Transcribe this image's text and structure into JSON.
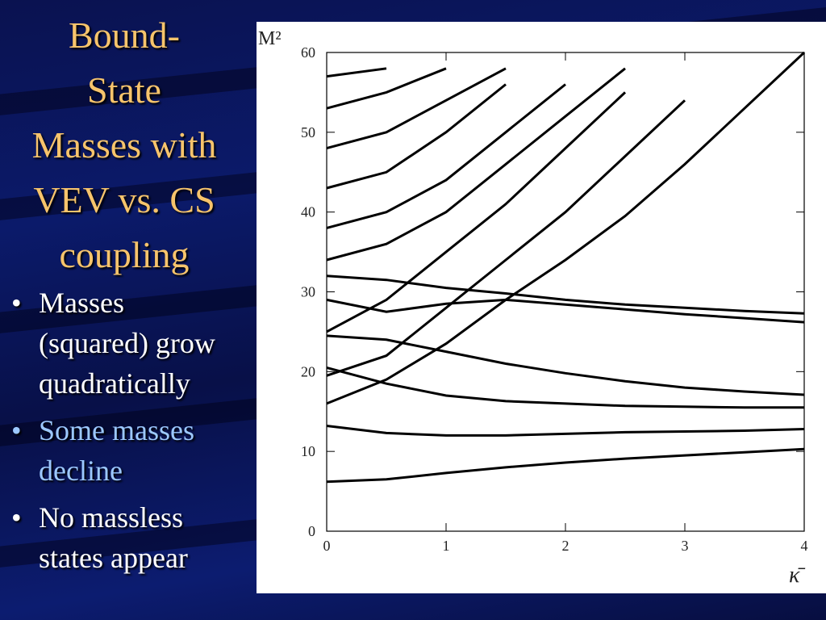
{
  "slide": {
    "title": [
      "Bound-",
      "State",
      "Masses with",
      "VEV vs. CS",
      "coupling"
    ],
    "bullets": [
      "Masses (squared) grow quadratically",
      "Some masses decline",
      "No massless states appear"
    ]
  },
  "chart_data": {
    "type": "line",
    "x_label": "κ̄",
    "y_label": "M²",
    "x": [
      0,
      0.5,
      1,
      1.5,
      2,
      2.5,
      3,
      3.5,
      4
    ],
    "xlim": [
      0,
      4
    ],
    "ylim": [
      0,
      60
    ],
    "xticks": [
      0,
      1,
      2,
      3,
      4
    ],
    "yticks": [
      0,
      10,
      20,
      30,
      40,
      50,
      60
    ],
    "color": "#000000",
    "series": [
      {
        "values": [
          6.2,
          6.5,
          7.3,
          8,
          8.6,
          9.1,
          9.5,
          9.9,
          10.3
        ]
      },
      {
        "values": [
          13.2,
          12.3,
          12,
          12,
          12.2,
          12.4,
          12.5,
          12.6,
          12.8
        ]
      },
      {
        "values": [
          20.5,
          18.5,
          17,
          16.3,
          16,
          15.7,
          15.6,
          15.5,
          15.5
        ]
      },
      {
        "values": [
          24.5,
          24,
          22.5,
          21,
          19.8,
          18.8,
          18,
          17.5,
          17.1
        ]
      },
      {
        "values": [
          29,
          27.5,
          28.5,
          29,
          28.4,
          27.8,
          27.2,
          26.7,
          26.2
        ]
      },
      {
        "values": [
          32,
          31.5,
          30.5,
          29.8,
          29,
          28.4,
          28,
          27.6,
          27.3
        ]
      },
      {
        "values": [
          16,
          19,
          23.5,
          29,
          34,
          39.5,
          46,
          53,
          60
        ]
      },
      {
        "values": [
          19.5,
          22,
          28,
          34,
          40,
          47,
          54,
          null,
          null
        ]
      },
      {
        "values": [
          25,
          29,
          35,
          41,
          48,
          55,
          null,
          null,
          null
        ]
      },
      {
        "values": [
          34,
          36,
          40,
          46,
          52,
          58,
          null,
          null,
          null
        ]
      },
      {
        "values": [
          38,
          40,
          44,
          50,
          56,
          null,
          null,
          null,
          null
        ]
      },
      {
        "values": [
          43,
          45,
          50,
          56,
          null,
          null,
          null,
          null,
          null
        ]
      },
      {
        "values": [
          48,
          50,
          54,
          58,
          null,
          null,
          null,
          null,
          null
        ]
      },
      {
        "values": [
          53,
          55,
          58,
          null,
          null,
          null,
          null,
          null,
          null
        ]
      },
      {
        "values": [
          57,
          58,
          null,
          null,
          null,
          null,
          null,
          null,
          null
        ]
      }
    ]
  }
}
